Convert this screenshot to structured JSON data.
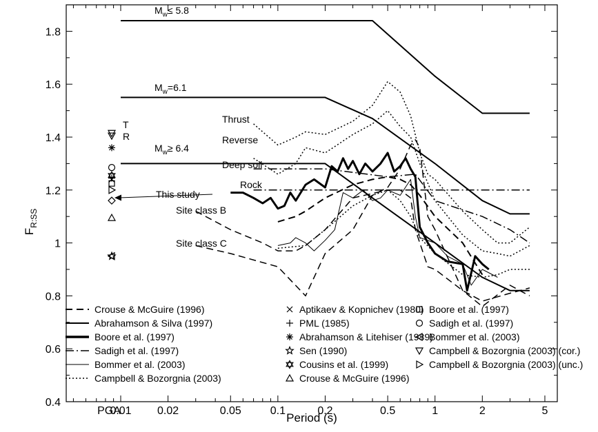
{
  "chart_data": {
    "type": "line",
    "xlabel": "Period (s)",
    "ylabel_main": "F",
    "ylabel_sub": "R:SS",
    "x_scale": "log",
    "x_extra_tick": "PGA",
    "xlim": [
      0.0045,
      6.0
    ],
    "ylim": [
      0.4,
      1.9
    ],
    "x_ticks": [
      {
        "v": 0.01,
        "label": "0.01"
      },
      {
        "v": 0.02,
        "label": "0.02"
      },
      {
        "v": 0.05,
        "label": "0.05"
      },
      {
        "v": 0.1,
        "label": "0.1"
      },
      {
        "v": 0.2,
        "label": "0.2"
      },
      {
        "v": 0.5,
        "label": "0.5"
      },
      {
        "v": 1,
        "label": "1"
      },
      {
        "v": 2,
        "label": "2"
      },
      {
        "v": 5,
        "label": "5"
      }
    ],
    "y_ticks": [
      {
        "v": 0.4,
        "label": "0.4"
      },
      {
        "v": 0.6,
        "label": "0.6"
      },
      {
        "v": 0.8,
        "label": "0.8"
      },
      {
        "v": 1.0,
        "label": "1"
      },
      {
        "v": 1.2,
        "label": "1.2"
      },
      {
        "v": 1.4,
        "label": "1.4"
      },
      {
        "v": 1.6,
        "label": "1.6"
      },
      {
        "v": 1.8,
        "label": "1.8"
      }
    ],
    "grid": false,
    "legend_position": "bottom-left, inside",
    "series": [
      {
        "name": "Crouse & McGuire (1996)",
        "dash": "10,6",
        "width": 2,
        "color": "#000000",
        "points": [
          [
            0.1,
            1.08
          ],
          [
            0.13,
            1.1
          ],
          [
            0.15,
            1.12
          ],
          [
            0.2,
            1.17
          ],
          [
            0.3,
            1.22
          ],
          [
            0.4,
            1.24
          ],
          [
            0.5,
            1.25
          ],
          [
            0.6,
            1.24
          ],
          [
            0.7,
            1.22
          ],
          [
            0.8,
            1.18
          ],
          [
            1.0,
            1.1
          ],
          [
            1.5,
            1.0
          ],
          [
            2.0,
            0.88
          ]
        ]
      },
      {
        "name": "Crouse & McGuire (1996)",
        "dash": "10,6",
        "width": 1.5,
        "color": "#000000",
        "points": [
          [
            0.03,
            1.12
          ],
          [
            0.05,
            1.05
          ],
          [
            0.08,
            1.0
          ],
          [
            0.1,
            0.97
          ],
          [
            0.13,
            0.97
          ],
          [
            0.15,
            0.99
          ],
          [
            0.2,
            1.05
          ],
          [
            0.3,
            1.17
          ],
          [
            0.5,
            1.2
          ],
          [
            0.6,
            1.2
          ],
          [
            0.7,
            1.17
          ],
          [
            0.75,
            1.05
          ],
          [
            0.9,
            0.91
          ],
          [
            1.0,
            0.9
          ],
          [
            1.5,
            0.82
          ],
          [
            2.0,
            0.78
          ],
          [
            3.0,
            0.81
          ],
          [
            4.0,
            0.83
          ]
        ]
      },
      {
        "name": "Crouse & McGuire (1996)",
        "dash": "10,6",
        "width": 1.5,
        "color": "#000000",
        "points": [
          [
            0.03,
            0.99
          ],
          [
            0.05,
            0.96
          ],
          [
            0.1,
            0.91
          ],
          [
            0.15,
            0.8
          ],
          [
            0.2,
            0.96
          ],
          [
            0.3,
            1.05
          ],
          [
            0.4,
            1.18
          ],
          [
            0.5,
            1.21
          ],
          [
            0.6,
            1.28
          ],
          [
            0.7,
            1.37
          ],
          [
            0.75,
            1.39
          ],
          [
            0.8,
            1.36
          ],
          [
            0.9,
            1.1
          ],
          [
            1.0,
            1.05
          ],
          [
            1.5,
            0.82
          ],
          [
            2.0,
            0.76
          ],
          [
            3.0,
            0.84
          ],
          [
            4.0,
            0.8
          ]
        ]
      },
      {
        "name": "Abrahamson & Silva (1997)",
        "dash": "",
        "width": 2,
        "color": "#000000",
        "points": [
          [
            0.01,
            1.84
          ],
          [
            0.4,
            1.84
          ],
          [
            1.0,
            1.63
          ],
          [
            2.0,
            1.49
          ],
          [
            4.0,
            1.49
          ]
        ]
      },
      {
        "name": "Abrahamson & Silva (1997)",
        "dash": "",
        "width": 2,
        "color": "#000000",
        "points": [
          [
            0.01,
            1.55
          ],
          [
            0.2,
            1.55
          ],
          [
            0.4,
            1.47
          ],
          [
            1.0,
            1.3
          ],
          [
            2.0,
            1.16
          ],
          [
            3.0,
            1.11
          ],
          [
            4.0,
            1.11
          ]
        ]
      },
      {
        "name": "Abrahamson & Silva (1997)",
        "dash": "",
        "width": 2,
        "color": "#000000",
        "points": [
          [
            0.01,
            1.3
          ],
          [
            0.2,
            1.3
          ],
          [
            0.4,
            1.17
          ],
          [
            1.0,
            1.0
          ],
          [
            2.0,
            0.87
          ],
          [
            3.0,
            0.82
          ],
          [
            4.0,
            0.82
          ]
        ]
      },
      {
        "name": "Boore et al. (1997)",
        "dash": "",
        "width": 3,
        "color": "#000000",
        "points": [
          [
            0.05,
            1.19
          ],
          [
            0.06,
            1.19
          ],
          [
            0.07,
            1.17
          ],
          [
            0.08,
            1.15
          ],
          [
            0.09,
            1.17
          ],
          [
            0.1,
            1.13
          ],
          [
            0.11,
            1.14
          ],
          [
            0.12,
            1.19
          ],
          [
            0.13,
            1.16
          ],
          [
            0.15,
            1.22
          ],
          [
            0.17,
            1.24
          ],
          [
            0.2,
            1.21
          ],
          [
            0.22,
            1.29
          ],
          [
            0.24,
            1.27
          ],
          [
            0.26,
            1.32
          ],
          [
            0.28,
            1.28
          ],
          [
            0.3,
            1.31
          ],
          [
            0.33,
            1.26
          ],
          [
            0.36,
            1.3
          ],
          [
            0.4,
            1.27
          ],
          [
            0.45,
            1.3
          ],
          [
            0.5,
            1.34
          ],
          [
            0.55,
            1.27
          ],
          [
            0.6,
            1.29
          ],
          [
            0.65,
            1.32
          ],
          [
            0.7,
            1.28
          ],
          [
            0.75,
            1.25
          ],
          [
            0.8,
            1.06
          ],
          [
            0.9,
            1.0
          ],
          [
            1.0,
            0.96
          ],
          [
            1.2,
            0.93
          ],
          [
            1.5,
            0.92
          ],
          [
            1.6,
            0.82
          ],
          [
            1.8,
            0.95
          ],
          [
            2.0,
            0.92
          ],
          [
            2.2,
            0.9
          ]
        ]
      },
      {
        "name": "Sadigh et al. (1997)",
        "dash": "12,4,2,4",
        "width": 1.5,
        "color": "#000000",
        "points": [
          [
            0.07,
            1.2
          ],
          [
            4.0,
            1.2
          ]
        ]
      },
      {
        "name": "Sadigh et al. (1997)",
        "dash": "12,4,2,4",
        "width": 1.5,
        "color": "#000000",
        "points": [
          [
            0.07,
            1.28
          ],
          [
            0.2,
            1.28
          ],
          [
            0.5,
            1.25
          ],
          [
            0.75,
            1.26
          ],
          [
            1.0,
            1.16
          ],
          [
            2.0,
            1.1
          ],
          [
            3.0,
            1.05
          ],
          [
            4.0,
            1.0
          ]
        ]
      },
      {
        "name": "Bommer et al. (2003)",
        "dash": "",
        "width": 1,
        "color": "#000000",
        "points": [
          [
            0.1,
            0.99
          ],
          [
            0.12,
            1.0
          ],
          [
            0.13,
            1.02
          ],
          [
            0.15,
            1.0
          ],
          [
            0.17,
            0.97
          ],
          [
            0.2,
            1.01
          ],
          [
            0.23,
            1.05
          ],
          [
            0.26,
            1.19
          ],
          [
            0.3,
            1.17
          ],
          [
            0.35,
            1.2
          ],
          [
            0.4,
            1.16
          ],
          [
            0.45,
            1.17
          ],
          [
            0.5,
            1.2
          ],
          [
            0.6,
            1.18
          ],
          [
            0.7,
            1.24
          ],
          [
            0.75,
            1.1
          ],
          [
            0.8,
            1.02
          ],
          [
            1.0,
            1.0
          ],
          [
            1.2,
            0.95
          ],
          [
            1.5,
            0.92
          ],
          [
            1.7,
            0.84
          ],
          [
            2.0,
            0.9
          ],
          [
            2.5,
            0.87
          ]
        ]
      },
      {
        "name": "Campbell & Bozorgnia (2003)",
        "dash": "2,3",
        "width": 1.5,
        "color": "#000000",
        "points": [
          [
            0.07,
            1.45
          ],
          [
            0.1,
            1.37
          ],
          [
            0.13,
            1.4
          ],
          [
            0.15,
            1.42
          ],
          [
            0.2,
            1.41
          ],
          [
            0.3,
            1.46
          ],
          [
            0.4,
            1.52
          ],
          [
            0.5,
            1.61
          ],
          [
            0.6,
            1.57
          ],
          [
            0.7,
            1.48
          ],
          [
            0.8,
            1.34
          ],
          [
            0.9,
            1.26
          ],
          [
            1.0,
            1.24
          ],
          [
            1.5,
            1.12
          ],
          [
            2.0,
            1.05
          ],
          [
            2.5,
            1.0
          ],
          [
            3.0,
            1.0
          ],
          [
            4.0,
            1.06
          ]
        ]
      },
      {
        "name": "Campbell & Bozorgnia (2003)",
        "dash": "2,3",
        "width": 1.5,
        "color": "#000000",
        "points": [
          [
            0.07,
            1.32
          ],
          [
            0.1,
            1.26
          ],
          [
            0.13,
            1.3
          ],
          [
            0.15,
            1.36
          ],
          [
            0.2,
            1.34
          ],
          [
            0.3,
            1.41
          ],
          [
            0.4,
            1.45
          ],
          [
            0.5,
            1.5
          ],
          [
            0.6,
            1.44
          ],
          [
            0.7,
            1.4
          ],
          [
            0.8,
            1.3
          ],
          [
            1.0,
            1.16
          ],
          [
            1.5,
            1.03
          ],
          [
            2.0,
            0.97
          ],
          [
            2.5,
            0.96
          ],
          [
            3.0,
            0.95
          ],
          [
            4.0,
            0.99
          ]
        ]
      },
      {
        "name": "Campbell & Bozorgnia (2003)",
        "dash": "2,3",
        "width": 1.5,
        "color": "#000000",
        "points": [
          [
            0.1,
            0.98
          ],
          [
            0.15,
            0.99
          ],
          [
            0.2,
            1.05
          ],
          [
            0.3,
            1.14
          ],
          [
            0.4,
            1.18
          ],
          [
            0.5,
            1.2
          ],
          [
            0.6,
            1.16
          ],
          [
            0.7,
            1.1
          ],
          [
            0.8,
            1.02
          ],
          [
            1.0,
            0.96
          ],
          [
            1.5,
            0.88
          ],
          [
            2.0,
            0.87
          ],
          [
            2.5,
            0.88
          ],
          [
            3.0,
            0.9
          ],
          [
            4.0,
            0.9
          ]
        ]
      }
    ],
    "pga_markers": [
      {
        "name": "Campbell & Bozorgnia (2003) (cor.)",
        "symbol": "tri-down",
        "y": 1.415
      },
      {
        "name": "Campbell & Bozorgnia (2003) (cor.)",
        "symbol": "tri-down",
        "y": 1.405
      },
      {
        "name": "Abrahamson & Litehiser (1989)",
        "symbol": "asterisk",
        "y": 1.36
      },
      {
        "name": "Sadigh et al. (1997)",
        "symbol": "circle",
        "y": 1.285
      },
      {
        "name": "Cousins et al. (1999)",
        "symbol": "star6",
        "y": 1.255
      },
      {
        "name": "Aptikaev & Kopnichev (1980)",
        "symbol": "x",
        "y": 1.24
      },
      {
        "name": "PML (1985)",
        "symbol": "plus",
        "y": 1.245
      },
      {
        "name": "Boore et al. (1997)",
        "symbol": "square",
        "y": 1.225
      },
      {
        "name": "Campbell & Bozorgnia (2003) (unc.)",
        "symbol": "tri-right",
        "y": 1.2
      },
      {
        "name": "This study",
        "symbol": "diamond",
        "y": 1.16
      },
      {
        "name": "Crouse & McGuire (1996)",
        "symbol": "tri-up",
        "y": 1.095
      },
      {
        "name": "Bommer et al. (2003)",
        "symbol": "tri-left",
        "y": 0.95
      },
      {
        "name": "Sen (1990)",
        "symbol": "star5",
        "y": 0.95
      }
    ],
    "annotations": {
      "mw_high": {
        "main": "M",
        "sub": "w",
        "rest": "≤ 5.8"
      },
      "mw_mid": {
        "main": "M",
        "sub": "w",
        "rest": "=6.1"
      },
      "mw_low": {
        "main": "M",
        "sub": "w",
        "rest": "≥ 6.4"
      },
      "thrust": "Thrust",
      "reverse": "Reverse",
      "deep_soil": "Deep soil",
      "rock": "Rock",
      "site_b": "Site class B",
      "site_c": "Site class C",
      "this_study": "This study",
      "t_label": "T",
      "r_label": "R"
    },
    "legend": [
      {
        "label": "Crouse & McGuire (1996)",
        "kind": "line",
        "dash": "10,6",
        "width": 2
      },
      {
        "label": "Abrahamson & Silva (1997)",
        "kind": "line",
        "dash": "",
        "width": 2
      },
      {
        "label": "Boore et al. (1997)",
        "kind": "line",
        "dash": "",
        "width": 3.5
      },
      {
        "label": "Sadigh et al. (1997)",
        "kind": "line",
        "dash": "12,4,2,4",
        "width": 1.5
      },
      {
        "label": "Bommer et al. (2003)",
        "kind": "line",
        "dash": "",
        "width": 1
      },
      {
        "label": "Campbell & Bozorgnia (2003)",
        "kind": "line",
        "dash": "2,3",
        "width": 1.5
      },
      {
        "label": "Aptikaev & Kopnichev (1980)",
        "kind": "marker",
        "symbol": "x"
      },
      {
        "label": "PML (1985)",
        "kind": "marker",
        "symbol": "plus"
      },
      {
        "label": "Abrahamson & Litehiser (1989)",
        "kind": "marker",
        "symbol": "asterisk"
      },
      {
        "label": "Sen (1990)",
        "kind": "marker",
        "symbol": "star5"
      },
      {
        "label": "Cousins et al. (1999)",
        "kind": "marker",
        "symbol": "star6"
      },
      {
        "label": "Crouse & McGuire (1996)",
        "kind": "marker",
        "symbol": "tri-up"
      },
      {
        "label": "Boore et al. (1997)",
        "kind": "marker",
        "symbol": "square"
      },
      {
        "label": "Sadigh et al. (1997)",
        "kind": "marker",
        "symbol": "circle"
      },
      {
        "label": "Bommer et al. (2003)",
        "kind": "marker",
        "symbol": "tri-left"
      },
      {
        "label": "Campbell & Bozorgnia (2003) (cor.)",
        "kind": "marker",
        "symbol": "tri-down"
      },
      {
        "label": "Campbell & Bozorgnia (2003) (unc.)",
        "kind": "marker",
        "symbol": "tri-right"
      }
    ]
  }
}
